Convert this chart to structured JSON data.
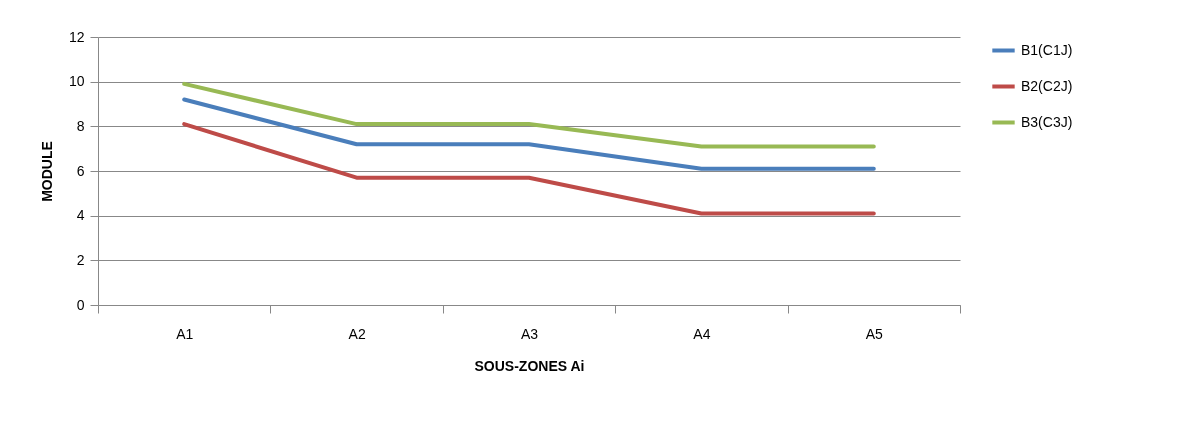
{
  "chart_data": {
    "type": "line",
    "xlabel": "SOUS-ZONES Ai",
    "ylabel": "MODULE",
    "categories": [
      "A1",
      "A2",
      "A3",
      "A4",
      "A5"
    ],
    "series": [
      {
        "name": "B1(C1J)",
        "color": "#4a7ebb",
        "values": [
          9.2,
          7.2,
          7.2,
          6.1,
          6.1
        ]
      },
      {
        "name": "B2(C2J)",
        "color": "#be4b48",
        "values": [
          8.1,
          5.7,
          5.7,
          4.1,
          4.1
        ]
      },
      {
        "name": "B3(C3J)",
        "color": "#98b954",
        "values": [
          9.9,
          8.1,
          8.1,
          7.1,
          7.1
        ]
      }
    ],
    "ylim": [
      0,
      12
    ],
    "yticks": [
      0,
      2,
      4,
      6,
      8,
      10,
      12
    ],
    "grid": "y",
    "legend": "right",
    "marker": "none",
    "line_style": "solid"
  }
}
